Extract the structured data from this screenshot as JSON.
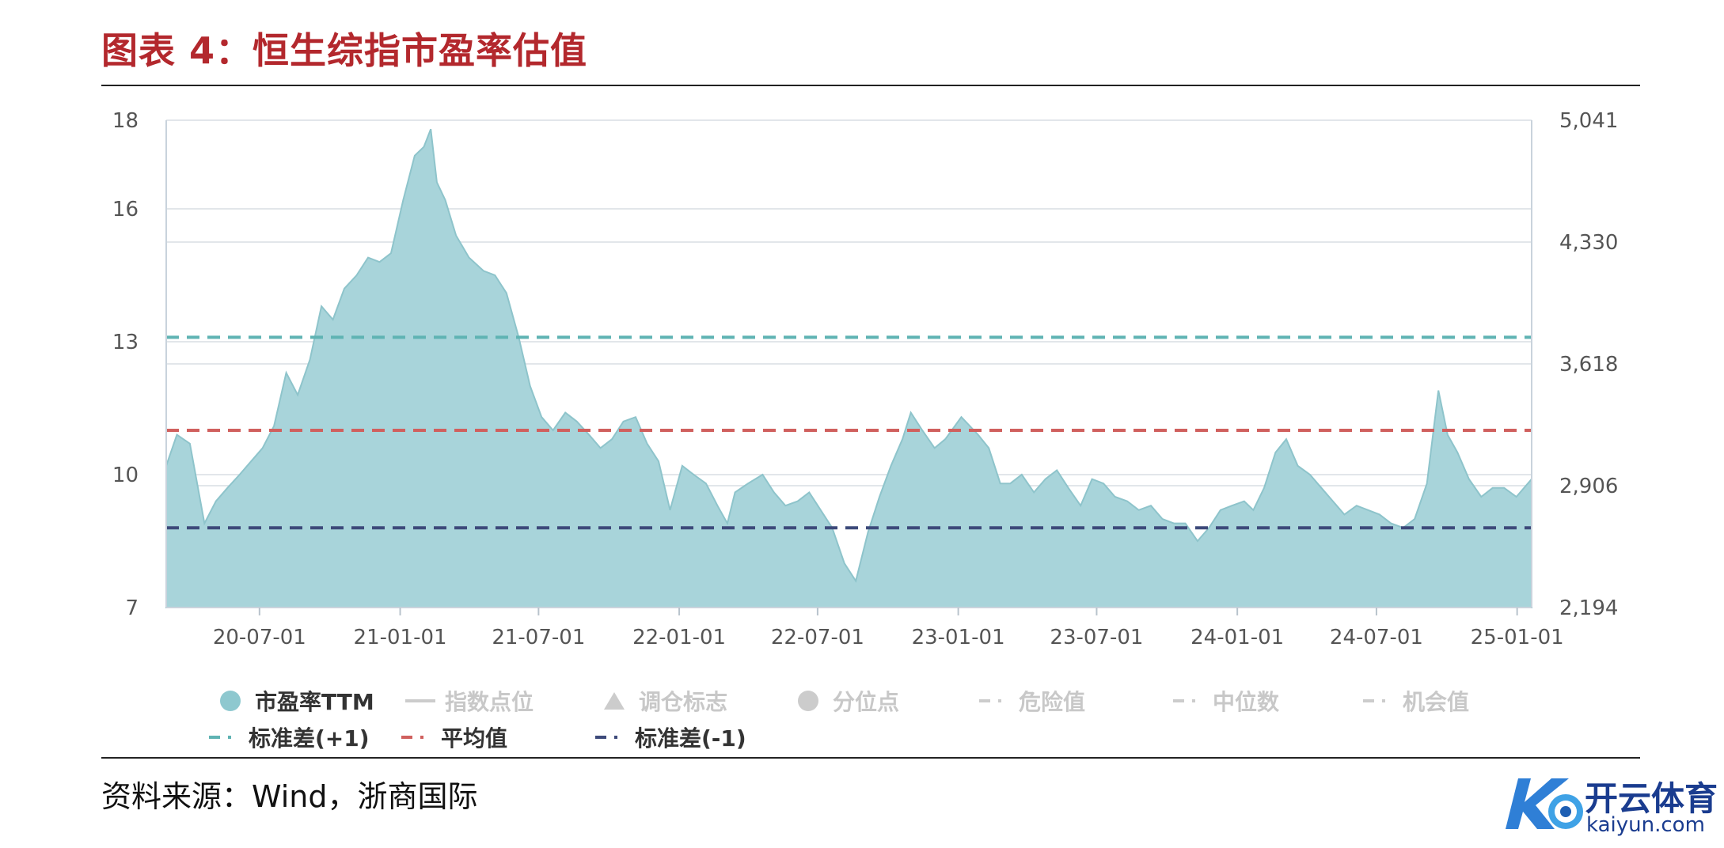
{
  "title": "图表 4：恒生综指市盈率估值",
  "source": "资料来源：Wind，浙商国际",
  "logo": {
    "name": "开云体育",
    "sub": "kaiyun.com"
  },
  "legend": [
    {
      "label": "市盈率TTM",
      "active": true,
      "symbol": "circle",
      "color": "#8ec8cf"
    },
    {
      "label": "指数点位",
      "active": false,
      "symbol": "line",
      "color": "#cccccc"
    },
    {
      "label": "调仓标志",
      "active": false,
      "symbol": "triangle",
      "color": "#cccccc"
    },
    {
      "label": "分位点",
      "active": false,
      "symbol": "circle",
      "color": "#cccccc"
    },
    {
      "label": "危险值",
      "active": false,
      "symbol": "dash",
      "color": "#cccccc"
    },
    {
      "label": "中位数",
      "active": false,
      "symbol": "dash",
      "color": "#cccccc"
    },
    {
      "label": "机会值",
      "active": false,
      "symbol": "dash",
      "color": "#cccccc"
    },
    {
      "label": "标准差(+1)",
      "active": true,
      "symbol": "dash",
      "color": "#5fb3b3"
    },
    {
      "label": "平均值",
      "active": true,
      "symbol": "dash",
      "color": "#d0605e"
    },
    {
      "label": "标准差(-1)",
      "active": true,
      "symbol": "dash",
      "color": "#3d4a7a"
    }
  ],
  "chart_data": {
    "type": "area",
    "title": "",
    "xlabel": "",
    "ylabel": "",
    "ylim": [
      7,
      18
    ],
    "y_ticks": [
      7,
      10,
      13,
      16,
      18
    ],
    "y2_ticks": [
      "2,194",
      "2,906",
      "3,618",
      "4,330",
      "5,041"
    ],
    "x_ticks": [
      "20-07-01",
      "21-01-01",
      "21-07-01",
      "22-01-01",
      "22-07-01",
      "23-01-01",
      "23-07-01",
      "24-01-01",
      "24-07-01",
      "25-01-01"
    ],
    "x_range": [
      "2020-03-01",
      "2025-01-20"
    ],
    "grid": true,
    "reference_lines": [
      {
        "name": "标准差(+1)",
        "value": 13.1,
        "color": "#5fb3b3"
      },
      {
        "name": "平均值",
        "value": 11.0,
        "color": "#d0605e"
      },
      {
        "name": "标准差(-1)",
        "value": 8.8,
        "color": "#3d4a7a"
      }
    ],
    "series": [
      {
        "name": "市盈率TTM",
        "color": "#a8d4da",
        "x": [
          "2020-03-01",
          "2020-03-15",
          "2020-04-01",
          "2020-04-20",
          "2020-05-05",
          "2020-05-20",
          "2020-06-05",
          "2020-06-20",
          "2020-07-05",
          "2020-07-20",
          "2020-08-05",
          "2020-08-20",
          "2020-09-05",
          "2020-09-20",
          "2020-10-05",
          "2020-10-20",
          "2020-11-05",
          "2020-11-20",
          "2020-12-05",
          "2020-12-20",
          "2021-01-05",
          "2021-01-20",
          "2021-02-01",
          "2021-02-10",
          "2021-02-18",
          "2021-03-01",
          "2021-03-15",
          "2021-04-01",
          "2021-04-20",
          "2021-05-05",
          "2021-05-20",
          "2021-06-05",
          "2021-06-20",
          "2021-07-05",
          "2021-07-20",
          "2021-08-05",
          "2021-08-20",
          "2021-09-05",
          "2021-09-20",
          "2021-10-05",
          "2021-10-20",
          "2021-11-05",
          "2021-11-20",
          "2021-12-05",
          "2021-12-20",
          "2022-01-05",
          "2022-01-20",
          "2022-02-05",
          "2022-02-20",
          "2022-03-05",
          "2022-03-15",
          "2022-04-01",
          "2022-04-20",
          "2022-05-05",
          "2022-05-20",
          "2022-06-05",
          "2022-06-20",
          "2022-07-05",
          "2022-07-20",
          "2022-08-05",
          "2022-08-20",
          "2022-09-05",
          "2022-09-20",
          "2022-10-05",
          "2022-10-20",
          "2022-10-31",
          "2022-11-15",
          "2022-12-01",
          "2022-12-15",
          "2023-01-05",
          "2023-01-27",
          "2023-02-10",
          "2023-02-25",
          "2023-03-10",
          "2023-03-25",
          "2023-04-10",
          "2023-04-25",
          "2023-05-10",
          "2023-05-25",
          "2023-06-10",
          "2023-06-25",
          "2023-07-10",
          "2023-07-25",
          "2023-08-10",
          "2023-08-25",
          "2023-09-10",
          "2023-09-25",
          "2023-10-10",
          "2023-10-25",
          "2023-11-10",
          "2023-11-25",
          "2023-12-10",
          "2023-12-25",
          "2024-01-10",
          "2024-01-22",
          "2024-02-05",
          "2024-02-20",
          "2024-03-05",
          "2024-03-20",
          "2024-04-05",
          "2024-04-20",
          "2024-05-05",
          "2024-05-20",
          "2024-06-05",
          "2024-06-20",
          "2024-07-05",
          "2024-07-20",
          "2024-08-05",
          "2024-08-20",
          "2024-09-05",
          "2024-09-20",
          "2024-10-02",
          "2024-10-15",
          "2024-10-30",
          "2024-11-15",
          "2024-11-30",
          "2024-12-15",
          "2024-12-31",
          "2025-01-20"
        ],
        "values": [
          10.2,
          10.9,
          10.7,
          8.9,
          9.4,
          9.7,
          10.0,
          10.3,
          10.6,
          11.1,
          12.3,
          11.8,
          12.6,
          13.8,
          13.5,
          14.2,
          14.5,
          14.9,
          14.8,
          15.0,
          16.2,
          17.2,
          17.4,
          17.8,
          16.6,
          16.2,
          15.4,
          14.9,
          14.6,
          14.5,
          14.1,
          13.1,
          12.0,
          11.3,
          11.0,
          11.4,
          11.2,
          10.9,
          10.6,
          10.8,
          11.2,
          11.3,
          10.7,
          10.3,
          9.2,
          10.2,
          10.0,
          9.8,
          9.3,
          8.9,
          9.6,
          9.8,
          10.0,
          9.6,
          9.3,
          9.4,
          9.6,
          9.2,
          8.8,
          8.0,
          7.6,
          8.7,
          9.5,
          10.2,
          10.8,
          11.4,
          11.0,
          10.6,
          10.8,
          11.3,
          10.9,
          10.6,
          9.8,
          9.8,
          10.0,
          9.6,
          9.9,
          10.1,
          9.7,
          9.3,
          9.9,
          9.8,
          9.5,
          9.4,
          9.2,
          9.3,
          9.0,
          8.9,
          8.9,
          8.5,
          8.8,
          9.2,
          9.3,
          9.4,
          9.2,
          9.7,
          10.5,
          10.8,
          10.2,
          10.0,
          9.7,
          9.4,
          9.1,
          9.3,
          9.2,
          9.1,
          8.9,
          8.8,
          9.0,
          9.8,
          11.9,
          10.9,
          10.5,
          9.9,
          9.5,
          9.7,
          9.7,
          9.5,
          9.9
        ]
      }
    ]
  }
}
